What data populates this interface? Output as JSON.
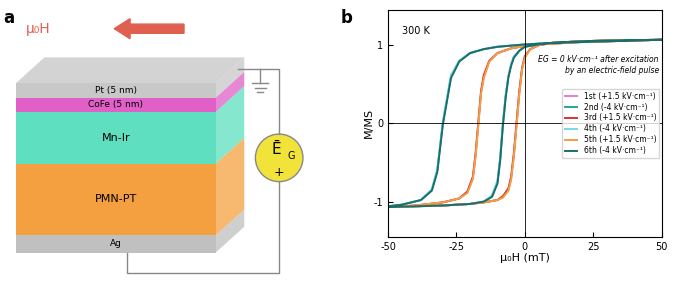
{
  "diagram": {
    "panel_label": "a",
    "field_label": "μ₀H",
    "layers": [
      {
        "label": "Pt (5 nm)",
        "color": "#c8c8c8"
      },
      {
        "label": "CoFe (5 nm)",
        "color": "#e060c8"
      },
      {
        "label": "Mn-Ir",
        "color": "#5ee0c0"
      },
      {
        "label": "PMN-PT",
        "color": "#f5a040"
      },
      {
        "label": "Ag",
        "color": "#c0c0c0"
      }
    ],
    "source": {
      "symbol": "Ē",
      "subscript": "G",
      "sign": "+"
    }
  },
  "chart_data": {
    "type": "line",
    "panel_label": "b",
    "annotation_top_left": "300 K",
    "annotation": [
      "EG = 0 kV·cm⁻¹ after excitation",
      "by an electric-field pulse"
    ],
    "x_label": "μ₀H (mT)",
    "y_label": "M/MS",
    "xlim": [
      -50,
      50
    ],
    "xticks": [
      -50,
      -25,
      0,
      25,
      50
    ],
    "ylim": [
      -1.45,
      1.45
    ],
    "yticks": [
      -1,
      0,
      1
    ],
    "legend": "center right",
    "series": [
      {
        "name": "1st (+1.5 kV·cm⁻¹)",
        "color": "#e878e0",
        "x": [
          50,
          40,
          30,
          20,
          10,
          5,
          0,
          -5,
          -10,
          -13,
          -15,
          -16,
          -17,
          -18,
          -19,
          -21,
          -24,
          -30,
          -40,
          -50,
          -50,
          -40,
          -30,
          -20,
          -15,
          -10,
          -8,
          -6,
          -5,
          -4,
          -3,
          -2,
          -1,
          0,
          2,
          5,
          10,
          20,
          30,
          40,
          50
        ],
        "values": [
          1.07,
          1.06,
          1.05,
          1.04,
          1.02,
          1.01,
          0.99,
          0.96,
          0.9,
          0.8,
          0.6,
          0.4,
          0.0,
          -0.4,
          -0.7,
          -0.88,
          -0.96,
          -1.01,
          -1.05,
          -1.07,
          -1.07,
          -1.06,
          -1.05,
          -1.03,
          -1.01,
          -0.98,
          -0.94,
          -0.85,
          -0.7,
          -0.4,
          0.0,
          0.4,
          0.7,
          0.85,
          0.95,
          1.0,
          1.03,
          1.05,
          1.06,
          1.065,
          1.07
        ]
      },
      {
        "name": "2nd (-4 kV·cm⁻¹)",
        "color": "#20a890",
        "x": [
          50,
          40,
          30,
          20,
          10,
          0,
          -10,
          -15,
          -20,
          -24,
          -27,
          -28,
          -29,
          -30,
          -31,
          -32,
          -34,
          -38,
          -45,
          -50,
          -50,
          -40,
          -30,
          -20,
          -15,
          -12,
          -10,
          -9,
          -8,
          -7,
          -6,
          -5,
          -4,
          -2,
          0,
          5,
          10,
          20,
          30,
          40,
          50
        ],
        "values": [
          1.07,
          1.06,
          1.05,
          1.04,
          1.03,
          1.01,
          0.98,
          0.95,
          0.9,
          0.8,
          0.6,
          0.4,
          0.2,
          0.0,
          -0.3,
          -0.6,
          -0.85,
          -0.98,
          -1.04,
          -1.06,
          -1.07,
          -1.06,
          -1.05,
          -1.03,
          -1.0,
          -0.93,
          -0.75,
          -0.45,
          0.0,
          0.35,
          0.6,
          0.75,
          0.85,
          0.93,
          0.98,
          1.01,
          1.03,
          1.05,
          1.06,
          1.065,
          1.07
        ]
      },
      {
        "name": "3rd (+1.5 kV·cm⁻¹)",
        "color": "#e03030",
        "x": [
          50,
          40,
          30,
          20,
          10,
          5,
          0,
          -5,
          -10,
          -13,
          -15,
          -16,
          -17,
          -18,
          -19,
          -21,
          -24,
          -30,
          -40,
          -50,
          -50,
          -40,
          -30,
          -20,
          -15,
          -10,
          -8,
          -6,
          -5,
          -4,
          -3,
          -2,
          -1,
          0,
          2,
          5,
          10,
          20,
          30,
          40,
          50
        ],
        "values": [
          1.07,
          1.06,
          1.05,
          1.04,
          1.02,
          1.01,
          0.99,
          0.96,
          0.9,
          0.8,
          0.62,
          0.42,
          0.02,
          -0.38,
          -0.68,
          -0.87,
          -0.96,
          -1.01,
          -1.05,
          -1.07,
          -1.07,
          -1.06,
          -1.05,
          -1.03,
          -1.01,
          -0.98,
          -0.93,
          -0.83,
          -0.68,
          -0.38,
          0.02,
          0.42,
          0.71,
          0.86,
          0.95,
          1.0,
          1.03,
          1.05,
          1.06,
          1.065,
          1.07
        ]
      },
      {
        "name": "4th (-4 kV·cm⁻¹)",
        "color": "#78d8e0",
        "x": [
          50,
          40,
          30,
          20,
          10,
          0,
          -10,
          -15,
          -20,
          -24,
          -27,
          -28,
          -29,
          -30,
          -31,
          -32,
          -34,
          -38,
          -45,
          -50,
          -50,
          -40,
          -30,
          -20,
          -15,
          -12,
          -10,
          -9,
          -8,
          -7,
          -6,
          -5,
          -4,
          -2,
          0,
          5,
          10,
          20,
          30,
          40,
          50
        ],
        "values": [
          1.07,
          1.06,
          1.05,
          1.04,
          1.03,
          1.01,
          0.98,
          0.95,
          0.9,
          0.8,
          0.62,
          0.42,
          0.22,
          0.02,
          -0.28,
          -0.58,
          -0.84,
          -0.98,
          -1.04,
          -1.06,
          -1.07,
          -1.06,
          -1.05,
          -1.03,
          -1.0,
          -0.92,
          -0.73,
          -0.43,
          0.02,
          0.37,
          0.61,
          0.76,
          0.86,
          0.93,
          0.98,
          1.01,
          1.03,
          1.05,
          1.06,
          1.065,
          1.07
        ]
      },
      {
        "name": "5th (+1.5 kV·cm⁻¹)",
        "color": "#f0a040",
        "x": [
          50,
          40,
          30,
          20,
          10,
          5,
          0,
          -5,
          -10,
          -13,
          -15,
          -16,
          -17,
          -18,
          -19,
          -21,
          -24,
          -30,
          -40,
          -50,
          -50,
          -40,
          -30,
          -20,
          -15,
          -10,
          -8,
          -6,
          -5,
          -4,
          -3,
          -2,
          -1,
          0,
          2,
          5,
          10,
          20,
          30,
          40,
          50
        ],
        "values": [
          1.07,
          1.06,
          1.05,
          1.04,
          1.02,
          1.01,
          0.99,
          0.96,
          0.9,
          0.79,
          0.58,
          0.38,
          -0.02,
          -0.42,
          -0.71,
          -0.89,
          -0.96,
          -1.01,
          -1.05,
          -1.07,
          -1.07,
          -1.06,
          -1.05,
          -1.03,
          -1.01,
          -0.98,
          -0.95,
          -0.86,
          -0.72,
          -0.42,
          -0.02,
          0.38,
          0.69,
          0.84,
          0.95,
          1.0,
          1.03,
          1.05,
          1.06,
          1.065,
          1.07
        ]
      },
      {
        "name": "6th (-4 kV·cm⁻¹)",
        "color": "#1a6e6e",
        "x": [
          50,
          40,
          30,
          20,
          10,
          0,
          -10,
          -15,
          -20,
          -24,
          -27,
          -28,
          -29,
          -30,
          -31,
          -32,
          -34,
          -38,
          -45,
          -50,
          -50,
          -40,
          -30,
          -20,
          -15,
          -12,
          -10,
          -9,
          -8,
          -7,
          -6,
          -5,
          -4,
          -2,
          0,
          5,
          10,
          20,
          30,
          40,
          50
        ],
        "values": [
          1.07,
          1.06,
          1.05,
          1.04,
          1.03,
          1.01,
          0.98,
          0.95,
          0.9,
          0.79,
          0.58,
          0.38,
          0.18,
          -0.02,
          -0.32,
          -0.62,
          -0.86,
          -0.98,
          -1.04,
          -1.06,
          -1.07,
          -1.06,
          -1.05,
          -1.03,
          -1.0,
          -0.94,
          -0.77,
          -0.47,
          -0.02,
          0.33,
          0.59,
          0.74,
          0.84,
          0.93,
          0.98,
          1.01,
          1.03,
          1.05,
          1.06,
          1.065,
          1.07
        ]
      }
    ]
  }
}
